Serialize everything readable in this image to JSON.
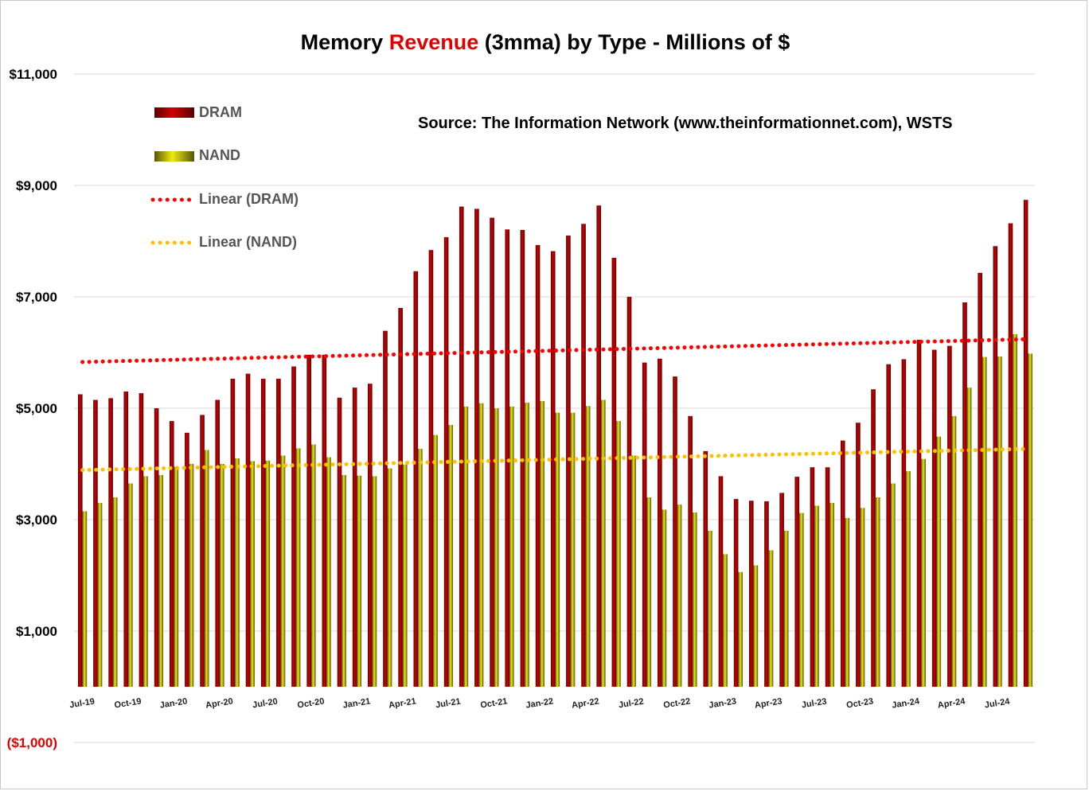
{
  "chart_data": {
    "type": "bar",
    "title_parts": [
      "Memory ",
      "Revenue",
      " (3mma) by Type - Millions of $"
    ],
    "source": "Source: The Information Network (www.theinformationnet.com), WSTS",
    "y_tick_labels": [
      {
        "value": 11000,
        "label": "$11,000"
      },
      {
        "value": 9000,
        "label": "$9,000"
      },
      {
        "value": 7000,
        "label": "$7,000"
      },
      {
        "value": 5000,
        "label": "$5,000"
      },
      {
        "value": 3000,
        "label": "$3,000"
      },
      {
        "value": 1000,
        "label": "$1,000"
      },
      {
        "value": -1000,
        "label": "($1,000)",
        "negative": true
      }
    ],
    "ylim": [
      -1000,
      11000
    ],
    "baseline": 0,
    "x_tick_labels": [
      {
        "index": 0,
        "label": "Jul-19"
      },
      {
        "index": 3,
        "label": "Oct-19"
      },
      {
        "index": 6,
        "label": "Jan-20"
      },
      {
        "index": 9,
        "label": "Apr-20"
      },
      {
        "index": 12,
        "label": "Jul-20"
      },
      {
        "index": 15,
        "label": "Oct-20"
      },
      {
        "index": 18,
        "label": "Jan-21"
      },
      {
        "index": 21,
        "label": "Apr-21"
      },
      {
        "index": 24,
        "label": "Jul-21"
      },
      {
        "index": 27,
        "label": "Oct-21"
      },
      {
        "index": 30,
        "label": "Jan-22"
      },
      {
        "index": 33,
        "label": "Apr-22"
      },
      {
        "index": 36,
        "label": "Jul-22"
      },
      {
        "index": 39,
        "label": "Oct-22"
      },
      {
        "index": 42,
        "label": "Jan-23"
      },
      {
        "index": 45,
        "label": "Apr-23"
      },
      {
        "index": 48,
        "label": "Jul-23"
      },
      {
        "index": 51,
        "label": "Oct-23"
      },
      {
        "index": 54,
        "label": "Jan-24"
      },
      {
        "index": 57,
        "label": "Apr-24"
      },
      {
        "index": 60,
        "label": "Jul-24"
      }
    ],
    "series": [
      {
        "name": "DRAM",
        "color": "#c00000",
        "dark": "#5a0000",
        "values": [
          5250,
          5150,
          5180,
          5300,
          5270,
          5000,
          4770,
          4560,
          4880,
          5150,
          5530,
          5620,
          5530,
          5530,
          5750,
          5960,
          5960,
          5190,
          5370,
          5440,
          6390,
          6800,
          7460,
          7840,
          8070,
          8620,
          8580,
          8420,
          8210,
          8200,
          7930,
          7820,
          8100,
          8310,
          8640,
          7700,
          7000,
          5820,
          5890,
          5570,
          4860,
          4230,
          3780,
          3370,
          3340,
          3330,
          3480,
          3770,
          3940,
          3940,
          4420,
          4740,
          5340,
          5790,
          5880,
          6230,
          6050,
          6120,
          6900,
          7430,
          7910,
          8320,
          8740
        ]
      },
      {
        "name": "NAND",
        "color": "#e6e000",
        "dark": "#5a5a00",
        "values": [
          3150,
          3300,
          3400,
          3650,
          3780,
          3800,
          3950,
          4000,
          4250,
          4000,
          4100,
          4050,
          4060,
          4150,
          4280,
          4350,
          4120,
          3800,
          3790,
          3780,
          3920,
          3990,
          4270,
          4520,
          4700,
          5030,
          5090,
          5000,
          5030,
          5100,
          5130,
          4920,
          4920,
          5040,
          5150,
          4770,
          4150,
          3400,
          3180,
          3270,
          3130,
          2800,
          2380,
          2060,
          2180,
          2450,
          2800,
          3120,
          3250,
          3300,
          3030,
          3210,
          3400,
          3650,
          3870,
          4090,
          4490,
          4860,
          5370,
          5920,
          5930,
          6330,
          5980
        ]
      },
      {
        "name": "Linear (DRAM)",
        "type": "trendline",
        "of": "DRAM",
        "color": "#ff0000",
        "start": 5830,
        "end": 6240
      },
      {
        "name": "Linear (NAND)",
        "type": "trendline",
        "of": "NAND",
        "color": "#ffc000",
        "start": 3890,
        "end": 4270
      }
    ]
  }
}
